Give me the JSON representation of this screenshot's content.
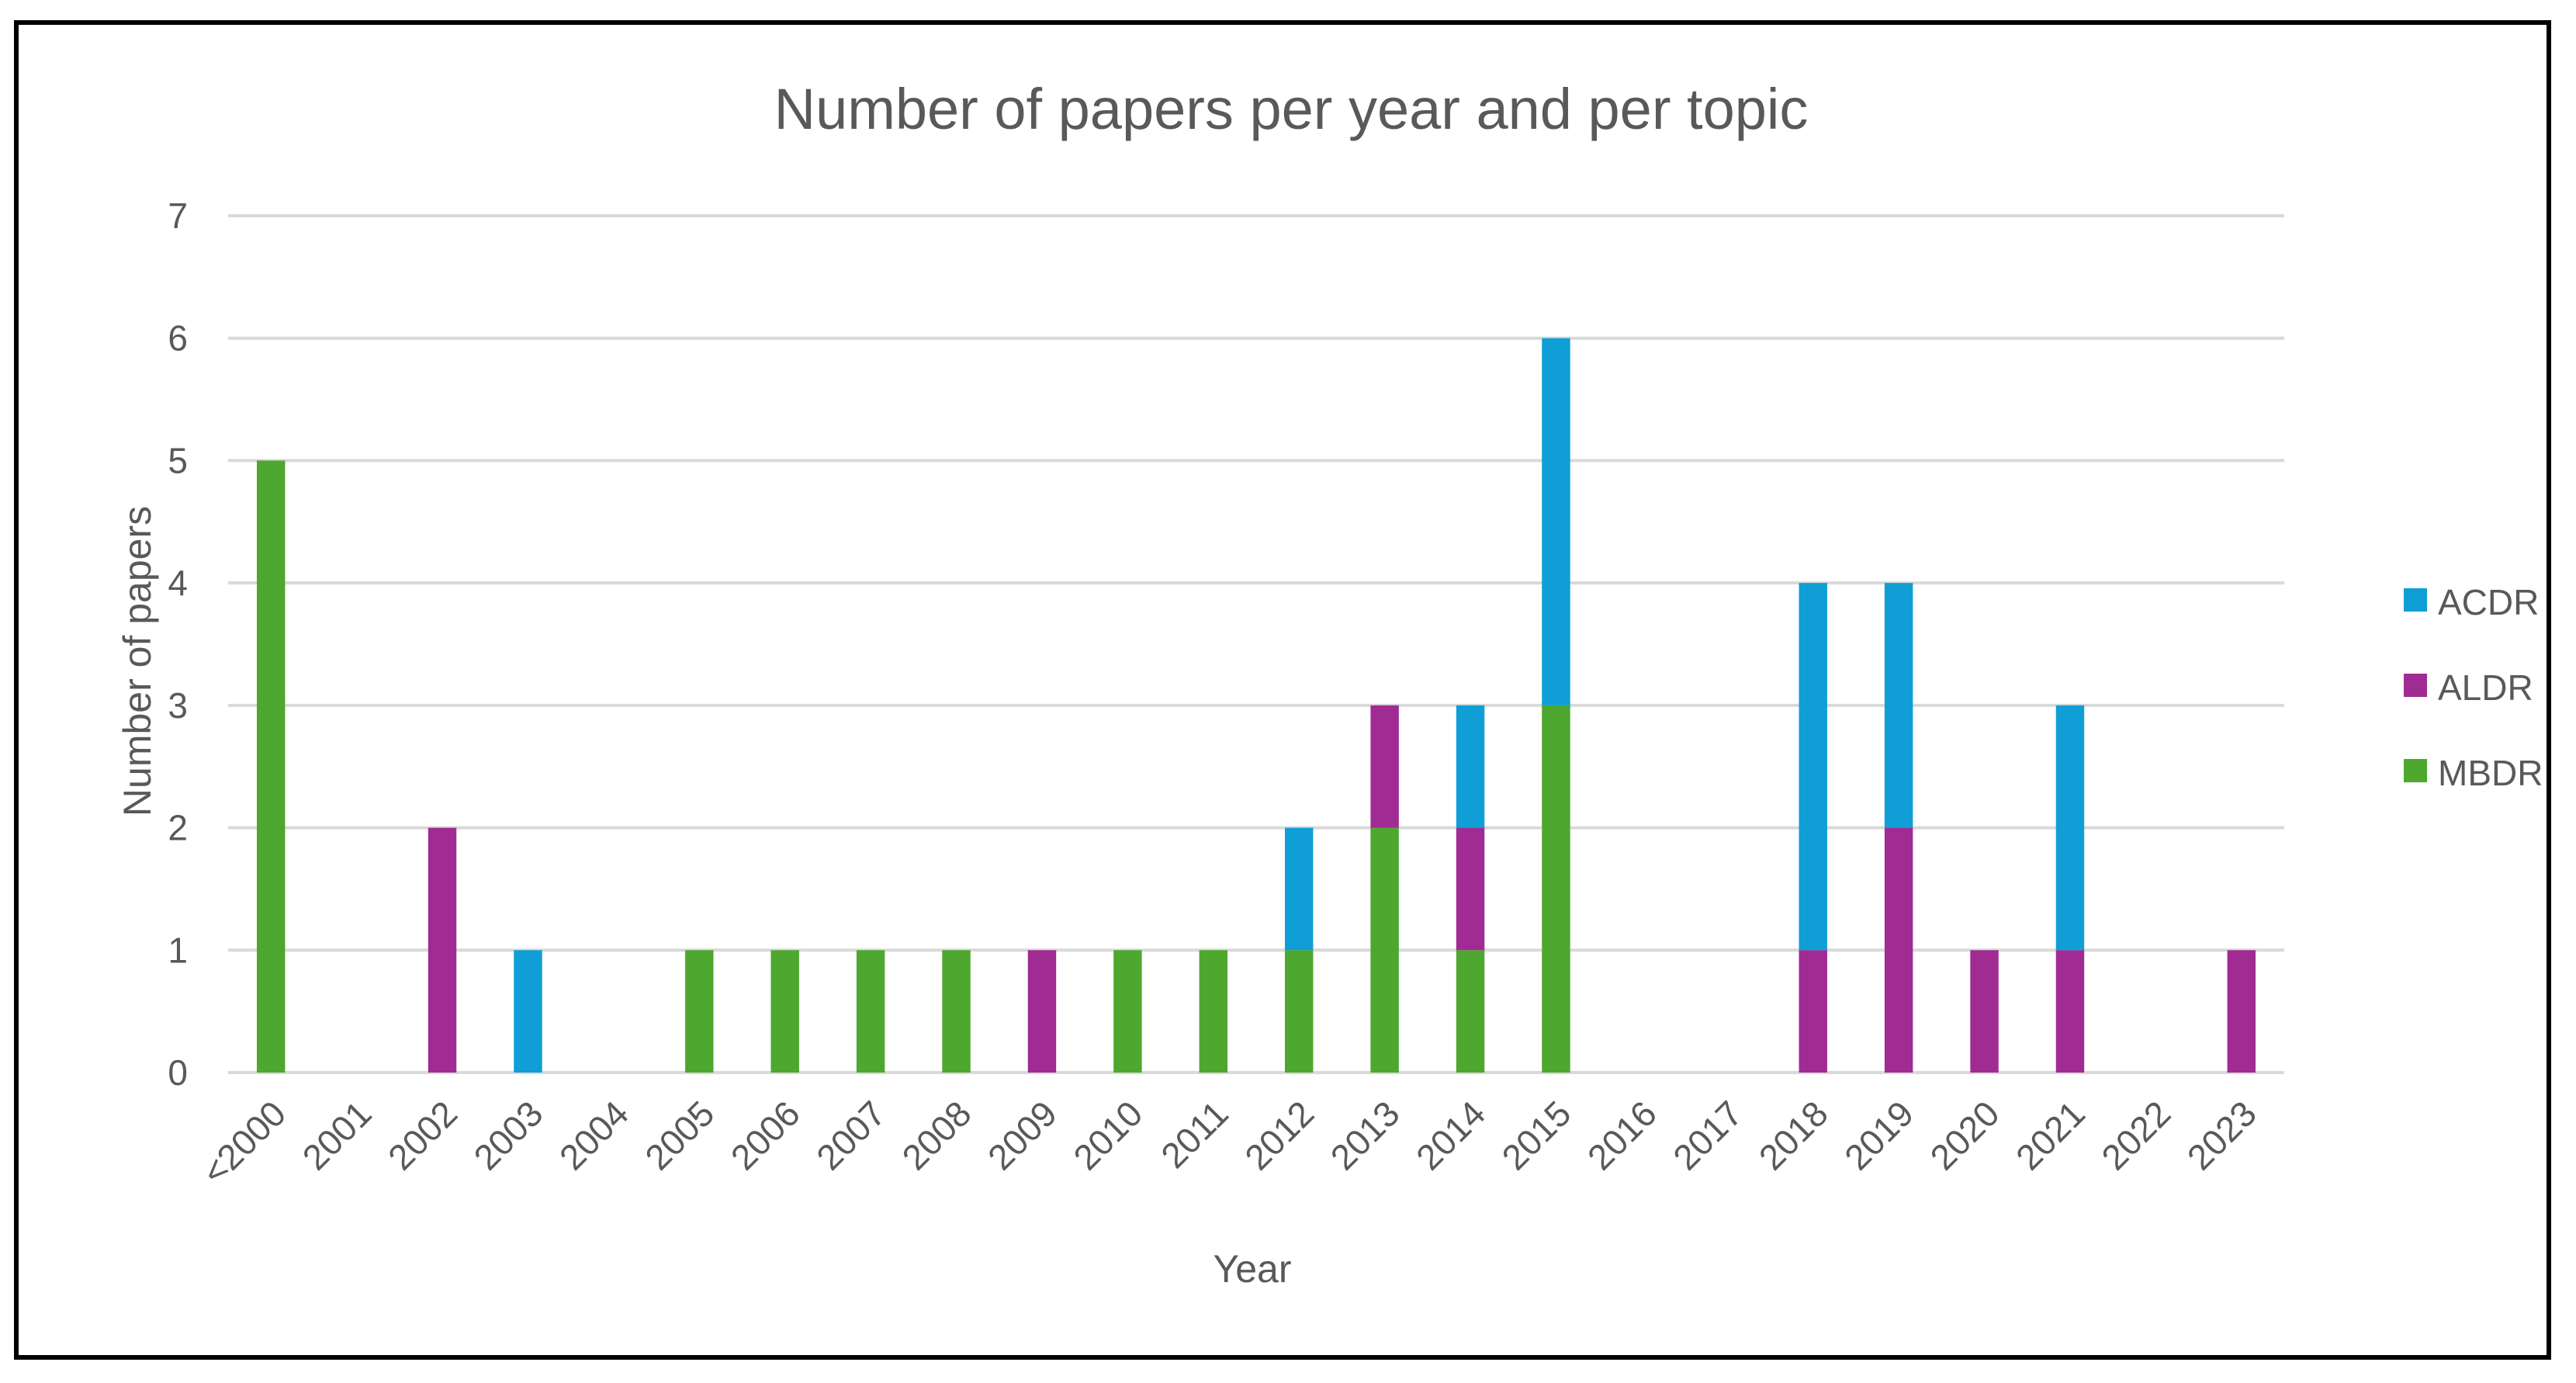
{
  "chart_data": {
    "type": "bar",
    "stacked": true,
    "title": "Number of papers per year and per topic",
    "xlabel": "Year",
    "ylabel": "Number of papers",
    "ylim": [
      0,
      7
    ],
    "yticks": [
      0,
      1,
      2,
      3,
      4,
      5,
      6,
      7
    ],
    "grid": true,
    "legend_position": "right",
    "categories": [
      "<2000",
      "2001",
      "2002",
      "2003",
      "2004",
      "2005",
      "2006",
      "2007",
      "2008",
      "2009",
      "2010",
      "2011",
      "2012",
      "2013",
      "2014",
      "2015",
      "2016",
      "2017",
      "2018",
      "2019",
      "2020",
      "2021",
      "2022",
      "2023"
    ],
    "series": [
      {
        "name": "MBDR",
        "color": "#4ea72e",
        "values": [
          5,
          0,
          0,
          0,
          0,
          1,
          1,
          1,
          1,
          0,
          1,
          1,
          1,
          2,
          1,
          3,
          0,
          0,
          0,
          0,
          0,
          0,
          0,
          0
        ]
      },
      {
        "name": "ALDR",
        "color": "#a02b93",
        "values": [
          0,
          0,
          2,
          0,
          0,
          0,
          0,
          0,
          0,
          1,
          0,
          0,
          0,
          1,
          1,
          0,
          0,
          0,
          1,
          2,
          1,
          1,
          0,
          1
        ]
      },
      {
        "name": "ACDR",
        "color": "#0f9ed5",
        "values": [
          0,
          0,
          0,
          1,
          0,
          0,
          0,
          0,
          0,
          0,
          0,
          0,
          1,
          0,
          1,
          3,
          0,
          0,
          3,
          2,
          0,
          2,
          0,
          0
        ]
      }
    ],
    "legend_order": [
      "ACDR",
      "ALDR",
      "MBDR"
    ]
  }
}
